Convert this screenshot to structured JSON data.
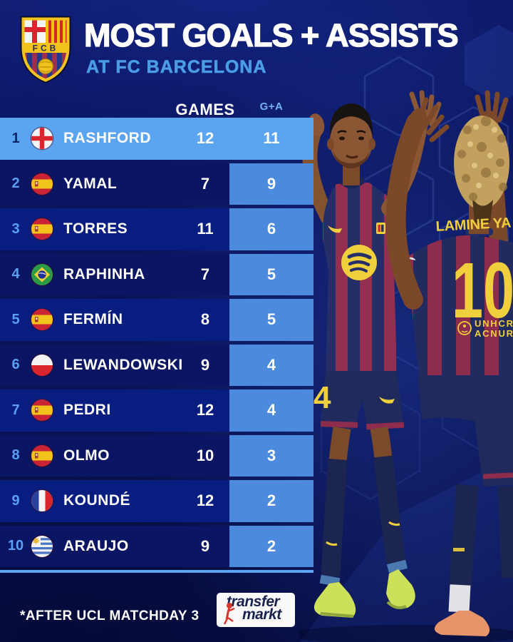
{
  "header": {
    "title": "MOST GOALS + ASSISTS",
    "subtitle": "AT FC BARCELONA",
    "crest_text": "FCB"
  },
  "table": {
    "headers": {
      "games": "GAMES",
      "ga": "G+A"
    },
    "rows": [
      {
        "rank": "1",
        "flag": "england",
        "name": "RASHFORD",
        "games": "12",
        "ga": "11",
        "highlight": true
      },
      {
        "rank": "2",
        "flag": "spain",
        "name": "YAMAL",
        "games": "7",
        "ga": "9"
      },
      {
        "rank": "3",
        "flag": "spain",
        "name": "TORRES",
        "games": "11",
        "ga": "6"
      },
      {
        "rank": "4",
        "flag": "brazil",
        "name": "RAPHINHA",
        "games": "7",
        "ga": "5"
      },
      {
        "rank": "5",
        "flag": "spain",
        "name": "FERMÍN",
        "games": "8",
        "ga": "5"
      },
      {
        "rank": "6",
        "flag": "poland",
        "name": "LEWANDOWSKI",
        "games": "9",
        "ga": "4"
      },
      {
        "rank": "7",
        "flag": "spain",
        "name": "PEDRI",
        "games": "12",
        "ga": "4"
      },
      {
        "rank": "8",
        "flag": "spain",
        "name": "OLMO",
        "games": "10",
        "ga": "3"
      },
      {
        "rank": "9",
        "flag": "france",
        "name": "KOUNDÉ",
        "games": "12",
        "ga": "2"
      },
      {
        "rank": "10",
        "flag": "uruguay",
        "name": "ARAUJO",
        "games": "9",
        "ga": "2"
      }
    ]
  },
  "photo": {
    "back_name": "LAMINE YA",
    "back_number": "10",
    "back_sponsor_line1": "UNHCR",
    "back_sponsor_line2": "ACNUR",
    "shorts_number": "4"
  },
  "footer": {
    "note": "*AFTER UCL MATCHDAY 3",
    "brand_line1": "transfer",
    "brand_line2": "markt"
  },
  "colors": {
    "highlight_row": "#5ba4f0",
    "ga_cell": "#4b8add",
    "row_dark": "#0a1563",
    "row_royal": "#081d80",
    "subtitle": "#4a9de5",
    "column_label": "#74b2f2",
    "rank_number": "#5c9ff2"
  },
  "chart_data": {
    "type": "table",
    "title": "MOST GOALS + ASSISTS AT FC BARCELONA",
    "columns": [
      "RANK",
      "NATION",
      "PLAYER",
      "GAMES",
      "G+A"
    ],
    "rows": [
      [
        1,
        "England",
        "RASHFORD",
        12,
        11
      ],
      [
        2,
        "Spain",
        "YAMAL",
        7,
        9
      ],
      [
        3,
        "Spain",
        "TORRES",
        11,
        6
      ],
      [
        4,
        "Brazil",
        "RAPHINHA",
        7,
        5
      ],
      [
        5,
        "Spain",
        "FERMÍN",
        8,
        5
      ],
      [
        6,
        "Poland",
        "LEWANDOWSKI",
        9,
        4
      ],
      [
        7,
        "Spain",
        "PEDRI",
        12,
        4
      ],
      [
        8,
        "Spain",
        "OLMO",
        10,
        3
      ],
      [
        9,
        "France",
        "KOUNDÉ",
        12,
        2
      ],
      [
        10,
        "Uruguay",
        "ARAUJO",
        9,
        2
      ]
    ],
    "note": "*AFTER UCL MATCHDAY 3"
  }
}
